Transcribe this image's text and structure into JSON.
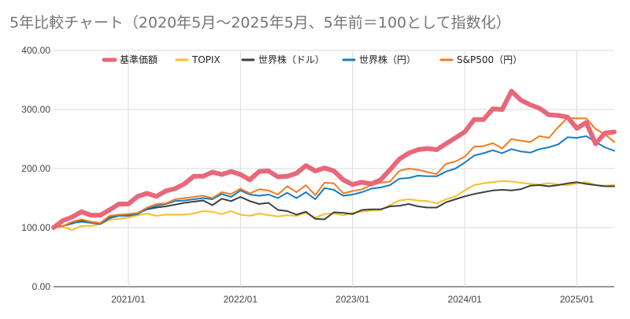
{
  "chart_data": {
    "type": "line",
    "title": "5年比較チャート（2020年5月～2025年5月、5年前＝100として指数化）",
    "xlabel": "",
    "ylabel": "",
    "ylim": [
      0,
      400
    ],
    "yticks": [
      "0.00",
      "100.00",
      "200.00",
      "300.00",
      "400.00"
    ],
    "xticks": [
      "2021/01",
      "2022/01",
      "2023/01",
      "2024/01",
      "2025/01"
    ],
    "grid": true,
    "legend_position": "top",
    "x": [
      "2020/05",
      "2020/06",
      "2020/07",
      "2020/08",
      "2020/09",
      "2020/10",
      "2020/11",
      "2020/12",
      "2021/01",
      "2021/02",
      "2021/03",
      "2021/04",
      "2021/05",
      "2021/06",
      "2021/07",
      "2021/08",
      "2021/09",
      "2021/10",
      "2021/11",
      "2021/12",
      "2022/01",
      "2022/02",
      "2022/03",
      "2022/04",
      "2022/05",
      "2022/06",
      "2022/07",
      "2022/08",
      "2022/09",
      "2022/10",
      "2022/11",
      "2022/12",
      "2023/01",
      "2023/02",
      "2023/03",
      "2023/04",
      "2023/05",
      "2023/06",
      "2023/07",
      "2023/08",
      "2023/09",
      "2023/10",
      "2023/11",
      "2023/12",
      "2024/01",
      "2024/02",
      "2024/03",
      "2024/04",
      "2024/05",
      "2024/06",
      "2024/07",
      "2024/08",
      "2024/09",
      "2024/10",
      "2024/11",
      "2024/12",
      "2025/01",
      "2025/02",
      "2025/03",
      "2025/04",
      "2025/05"
    ],
    "series": [
      {
        "name": "基準価額",
        "color": "#e8677a",
        "width": 6,
        "values": [
          100,
          112,
          118,
          127,
          121,
          121,
          130,
          140,
          140,
          153,
          158,
          153,
          162,
          166,
          174,
          187,
          187,
          194,
          190,
          195,
          190,
          181,
          195,
          196,
          186,
          187,
          192,
          205,
          196,
          201,
          196,
          181,
          173,
          177,
          174,
          181,
          198,
          216,
          226,
          232,
          234,
          232,
          242,
          252,
          262,
          283,
          283,
          301,
          300,
          331,
          316,
          308,
          302,
          291,
          290,
          287,
          268,
          278,
          242,
          260,
          262
        ]
      },
      {
        "name": "TOPIX",
        "color": "#f6c026",
        "width": 2,
        "values": [
          100,
          101,
          96,
          103,
          103,
          106,
          113,
          115,
          117,
          121,
          124,
          120,
          122,
          122,
          122,
          124,
          128,
          127,
          123,
          128,
          122,
          120,
          124,
          121,
          119,
          121,
          120,
          125,
          117,
          123,
          124,
          121,
          125,
          127,
          129,
          130,
          138,
          146,
          148,
          146,
          145,
          141,
          148,
          153,
          163,
          172,
          175,
          177,
          179,
          178,
          176,
          174,
          173,
          175,
          173,
          172,
          175,
          177,
          172,
          171,
          172
        ]
      },
      {
        "name": "世界株（ドル）",
        "color": "#3c4043",
        "width": 2,
        "values": [
          100,
          103,
          107,
          112,
          109,
          107,
          117,
          122,
          122,
          124,
          131,
          134,
          136,
          139,
          142,
          144,
          146,
          138,
          149,
          145,
          152,
          145,
          140,
          142,
          130,
          128,
          122,
          127,
          115,
          114,
          126,
          125,
          123,
          130,
          131,
          131,
          136,
          137,
          140,
          136,
          134,
          134,
          143,
          148,
          153,
          157,
          160,
          163,
          164,
          163,
          165,
          171,
          172,
          170,
          172,
          175,
          177,
          174,
          172,
          170,
          170
        ]
      },
      {
        "name": "世界株（円）",
        "color": "#1b7bc2",
        "width": 2,
        "values": [
          100,
          103,
          108,
          110,
          108,
          106,
          116,
          120,
          120,
          123,
          132,
          137,
          140,
          145,
          146,
          148,
          150,
          148,
          157,
          152,
          163,
          156,
          154,
          156,
          150,
          159,
          150,
          160,
          148,
          167,
          164,
          154,
          156,
          160,
          166,
          168,
          172,
          183,
          184,
          188,
          187,
          187,
          195,
          200,
          210,
          222,
          226,
          231,
          226,
          233,
          229,
          227,
          233,
          236,
          241,
          253,
          252,
          255,
          245,
          236,
          230
        ]
      },
      {
        "name": "S&P500（円）",
        "color": "#f47c20",
        "width": 2,
        "values": [
          100,
          103,
          110,
          114,
          110,
          108,
          120,
          122,
          123,
          125,
          134,
          140,
          141,
          148,
          150,
          152,
          154,
          150,
          160,
          157,
          166,
          158,
          165,
          163,
          156,
          170,
          160,
          172,
          155,
          176,
          175,
          158,
          162,
          165,
          172,
          176,
          178,
          196,
          200,
          198,
          194,
          191,
          208,
          212,
          220,
          237,
          238,
          243,
          234,
          250,
          247,
          245,
          255,
          252,
          270,
          286,
          285,
          285,
          267,
          258,
          245
        ]
      }
    ]
  }
}
